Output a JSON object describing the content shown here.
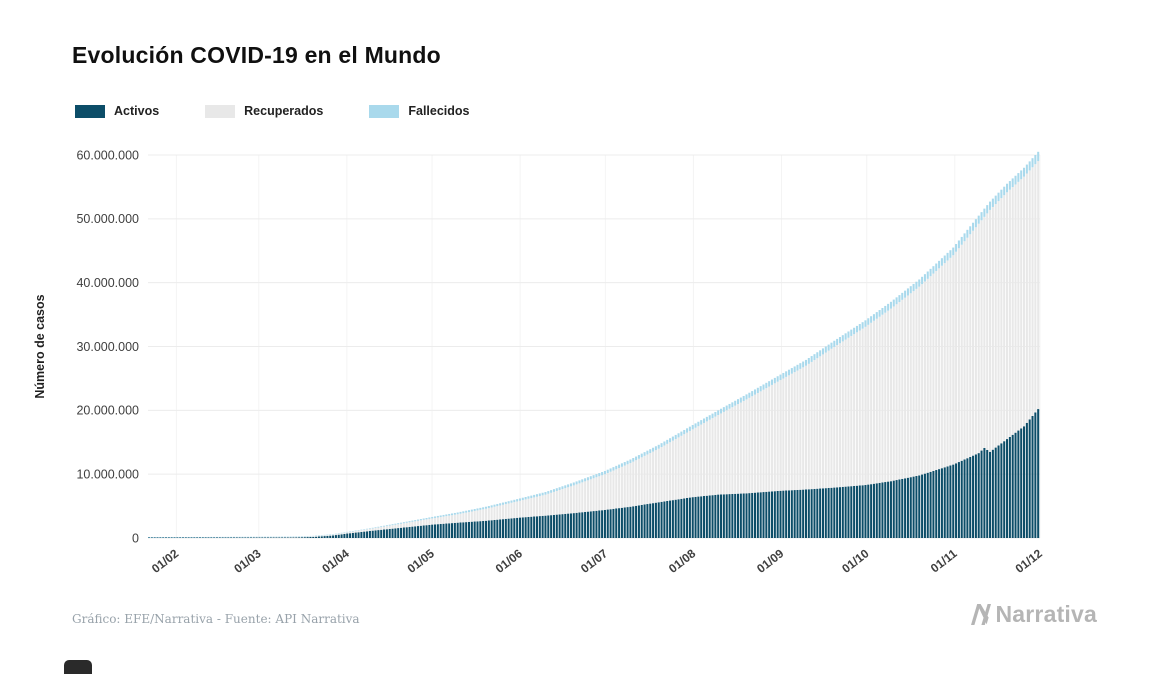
{
  "title": "Evolución COVID-19 en el Mundo",
  "footer": {
    "attribution": "Gráfico: EFE/Narrativa - Fuente: API Narrativa",
    "brand": "Narrativa"
  },
  "colors": {
    "activos": "#0c4d68",
    "recuperados": "#e8e8e8",
    "fallecidos": "#a9d9ec",
    "grid": "#ececec",
    "grid_vertical": "#f4f4f4",
    "axis_text": "#3f3f3f",
    "title_text": "#101010",
    "footer_text": "#98a2aa",
    "brand_text": "#b5b5b5"
  },
  "chart_data": {
    "type": "bar",
    "stacked": true,
    "title": "Evolución COVID-19 en el Mundo",
    "xlabel": "",
    "ylabel": "Número de casos",
    "ylim": [
      0,
      60000000
    ],
    "grid": true,
    "legend_position": "top-left",
    "series": [
      {
        "name": "Activos",
        "color": "#0c4d68"
      },
      {
        "name": "Recuperados",
        "color": "#e8e8e8"
      },
      {
        "name": "Fallecidos",
        "color": "#a9d9ec"
      }
    ],
    "y_ticks": [
      {
        "value": 0,
        "label": "0"
      },
      {
        "value": 10000000,
        "label": "10.000.000"
      },
      {
        "value": 20000000,
        "label": "20.000.000"
      },
      {
        "value": 30000000,
        "label": "30.000.000"
      },
      {
        "value": 40000000,
        "label": "40.000.000"
      },
      {
        "value": 50000000,
        "label": "50.000.000"
      },
      {
        "value": 60000000,
        "label": "60.000.000"
      }
    ],
    "x_ticks": [
      {
        "label": "01/02",
        "day": 0
      },
      {
        "label": "01/03",
        "day": 29
      },
      {
        "label": "01/04",
        "day": 60
      },
      {
        "label": "01/05",
        "day": 90
      },
      {
        "label": "01/06",
        "day": 121
      },
      {
        "label": "01/07",
        "day": 151
      },
      {
        "label": "01/08",
        "day": 182
      },
      {
        "label": "01/09",
        "day": 213
      },
      {
        "label": "01/10",
        "day": 243
      },
      {
        "label": "01/11",
        "day": 274
      },
      {
        "label": "01/12",
        "day": 304
      }
    ],
    "x_domain_days": [
      -10,
      304
    ],
    "points_columns": [
      "day",
      "activos",
      "recuperados",
      "fallecidos"
    ],
    "points": [
      [
        -10,
        500,
        30,
        20
      ],
      [
        0,
        10000,
        2000,
        100
      ],
      [
        9,
        34000,
        5000,
        1000
      ],
      [
        19,
        50000,
        24000,
        2000
      ],
      [
        29,
        40000,
        45000,
        3000
      ],
      [
        38,
        55000,
        60000,
        4000
      ],
      [
        48,
        170000,
        91000,
        11000
      ],
      [
        55,
        400000,
        125000,
        25000
      ],
      [
        60,
        700000,
        183000,
        47000
      ],
      [
        69,
        1150000,
        350000,
        100000
      ],
      [
        79,
        1600000,
        630000,
        170000
      ],
      [
        90,
        2100000,
        970000,
        230000
      ],
      [
        99,
        2400000,
        1320000,
        280000
      ],
      [
        109,
        2700000,
        1880000,
        320000
      ],
      [
        121,
        3200000,
        2630000,
        370000
      ],
      [
        130,
        3500000,
        3290000,
        410000
      ],
      [
        140,
        3900000,
        4340000,
        460000
      ],
      [
        151,
        4400000,
        5590000,
        510000
      ],
      [
        160,
        4900000,
        6840000,
        560000
      ],
      [
        170,
        5600000,
        8390000,
        610000
      ],
      [
        182,
        6400000,
        10620000,
        680000
      ],
      [
        191,
        6800000,
        12470000,
        730000
      ],
      [
        201,
        7000000,
        14710000,
        790000
      ],
      [
        213,
        7400000,
        17340000,
        860000
      ],
      [
        222,
        7600000,
        19390000,
        910000
      ],
      [
        232,
        7900000,
        22040000,
        960000
      ],
      [
        243,
        8300000,
        24780000,
        1020000
      ],
      [
        252,
        8900000,
        27030000,
        1070000
      ],
      [
        262,
        9800000,
        29570000,
        1130000
      ],
      [
        274,
        11500000,
        32800000,
        1200000
      ],
      [
        283,
        13300000,
        35930000,
        1270000
      ],
      [
        285,
        14100000,
        36210000,
        1290000
      ],
      [
        287,
        13500000,
        37900000,
        1300000
      ],
      [
        293,
        15500000,
        38660000,
        1340000
      ],
      [
        299,
        17500000,
        39110000,
        1390000
      ],
      [
        304,
        20200000,
        38850000,
        1450000
      ]
    ]
  }
}
